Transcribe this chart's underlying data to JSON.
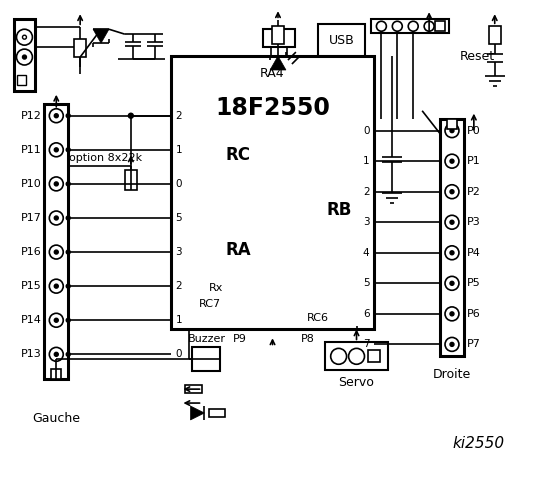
{
  "bg_color": "#ffffff",
  "lc": "#000000",
  "title": "ki2550",
  "chip_label": "18F2550",
  "chip_sub": "RA4",
  "rc_label": "RC",
  "ra_label": "RA",
  "rb_label": "RB",
  "left_pin_nums": [
    "2",
    "1",
    "0",
    "5",
    "3",
    "2",
    "1",
    "0"
  ],
  "rb_pin_nums": [
    "0",
    "1",
    "2",
    "3",
    "4",
    "5",
    "6",
    "7"
  ],
  "left_labels": [
    "P12",
    "P11",
    "P10",
    "P17",
    "P16",
    "P15",
    "P14",
    "P13"
  ],
  "right_labels": [
    "P0",
    "P1",
    "P2",
    "P3",
    "P4",
    "P5",
    "P6",
    "P7"
  ],
  "option_text": "option 8x22k",
  "usb_text": "USB",
  "reset_text": "Reset",
  "rx_text": "Rx",
  "rc7_text": "RC7",
  "rc6_text": "RC6",
  "gauche_text": "Gauche",
  "droite_text": "Droite",
  "buzzer_text": "Buzzer",
  "p9_text": "P9",
  "p8_text": "P8",
  "servo_text": "Servo"
}
